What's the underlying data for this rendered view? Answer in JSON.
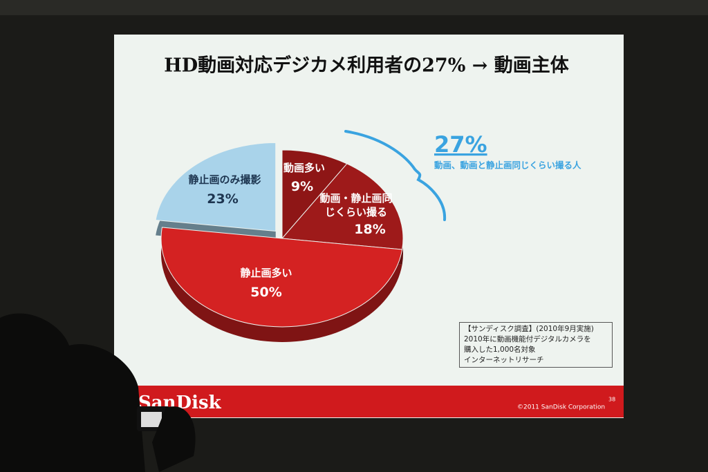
{
  "title": "HD動画対応デジカメ利用者の27% → 動画主体",
  "chart_data": {
    "type": "pie",
    "categories": [
      "動画多い",
      "動画・静止画同じくらい撮る",
      "静止画多い",
      "静止画のみ撮影"
    ],
    "values": [
      9,
      18,
      50,
      23
    ],
    "value_labels": [
      "9%",
      "18%",
      "50%",
      "23%"
    ],
    "colors": [
      "#8e1616",
      "#9e1a1a",
      "#d42222",
      "#a9d3ea"
    ],
    "annotation": {
      "value": "27%",
      "text": "動画、動画と静止画同じくらい撮る人"
    }
  },
  "note": [
    "【サンディスク調査】(2010年9月実施)",
    "2010年に動画機能付デジタルカメラを",
    "購入した1,000名対象",
    "インターネットリサーチ"
  ],
  "footer": {
    "brand": "SanDisk",
    "copyright": "©2011 SanDisk Corporation",
    "page": "38"
  }
}
